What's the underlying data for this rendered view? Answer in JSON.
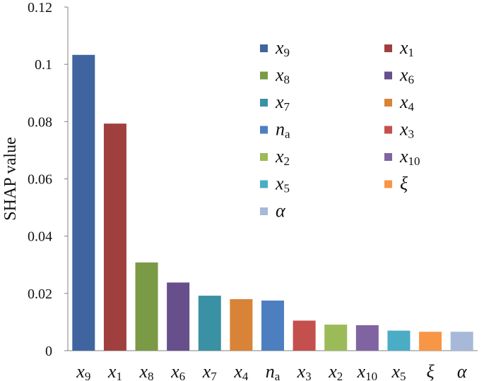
{
  "chart_data": {
    "type": "bar",
    "title": "",
    "xlabel": "",
    "ylabel": "SHAP value",
    "ylim": [
      0,
      0.12
    ],
    "yticks": [
      "0",
      "0.02",
      "0.04",
      "0.06",
      "0.08",
      "0.1",
      "0.12"
    ],
    "grid": false,
    "legend_position": "top-right",
    "categories": [
      {
        "base": "x",
        "sub": "9"
      },
      {
        "base": "x",
        "sub": "1"
      },
      {
        "base": "x",
        "sub": "8"
      },
      {
        "base": "x",
        "sub": "6"
      },
      {
        "base": "x",
        "sub": "7"
      },
      {
        "base": "x",
        "sub": "4"
      },
      {
        "base": "n",
        "sub": "a"
      },
      {
        "base": "x",
        "sub": "3"
      },
      {
        "base": "x",
        "sub": "2"
      },
      {
        "base": "x",
        "sub": "10"
      },
      {
        "base": "x",
        "sub": "5"
      },
      {
        "base": "ξ",
        "sub": ""
      },
      {
        "base": "α",
        "sub": ""
      }
    ],
    "values": [
      0.1033,
      0.0793,
      0.0308,
      0.0238,
      0.0192,
      0.018,
      0.0175,
      0.0105,
      0.0091,
      0.0089,
      0.007,
      0.0066,
      0.0066
    ],
    "colors": [
      "#3f64a0",
      "#a0403e",
      "#7a9a45",
      "#664f8a",
      "#3991a3",
      "#d98338",
      "#4d7fc0",
      "#c4504d",
      "#9bbb59",
      "#8064a2",
      "#4bacc6",
      "#f79646",
      "#a8b8d8"
    ]
  }
}
